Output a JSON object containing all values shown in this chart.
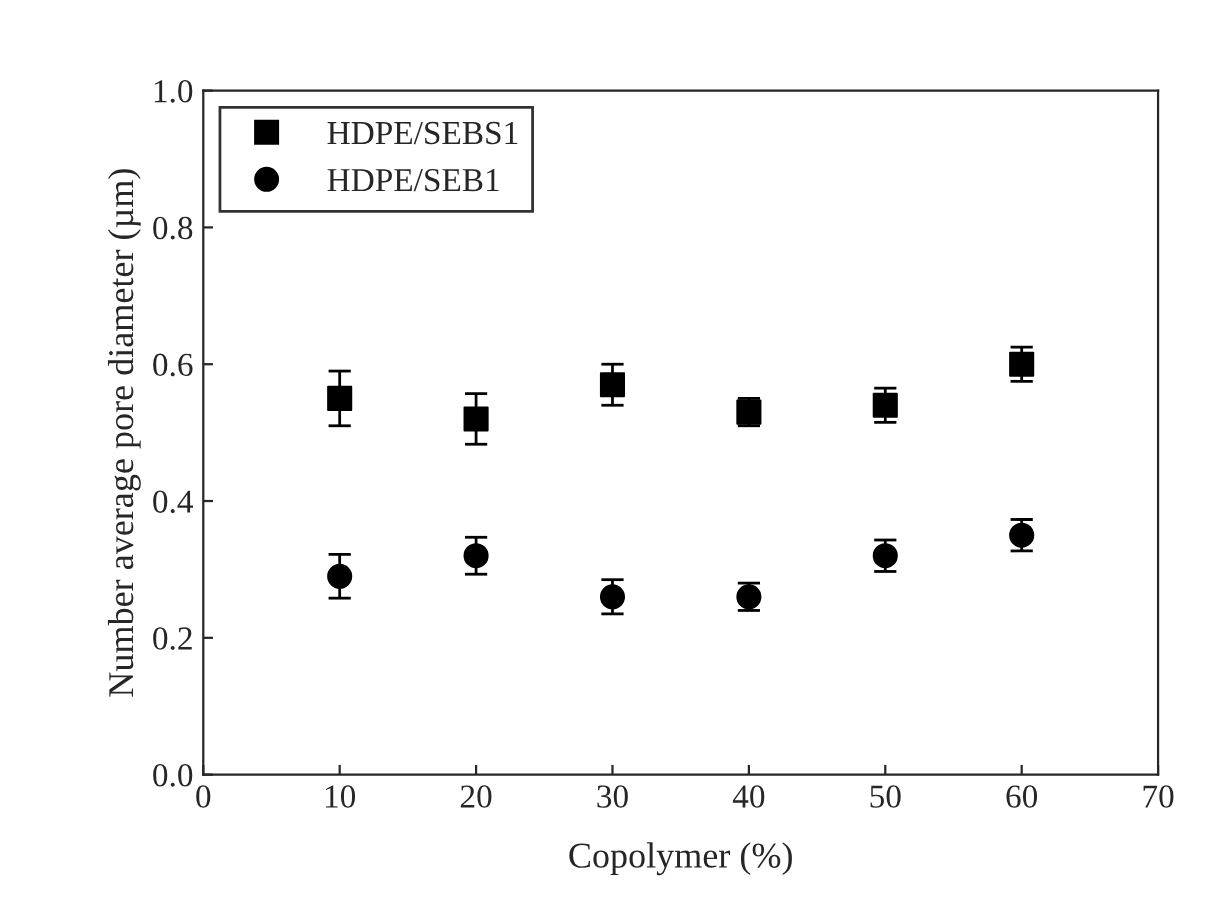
{
  "chart_data": {
    "type": "scatter",
    "xlabel": "Copolymer (%)",
    "ylabel": "Number average pore diameter (µm)",
    "xlim": [
      0,
      70
    ],
    "xticks": [
      0,
      10,
      20,
      30,
      40,
      50,
      60,
      70
    ],
    "ylim": [
      0,
      1.0
    ],
    "yticks": [
      {
        "value": 0,
        "label": "0.0"
      },
      0.2,
      0.4,
      0.6,
      0.8,
      {
        "value": 1.0,
        "label": "1.0"
      }
    ],
    "x": [
      10,
      20,
      30,
      40,
      50,
      60
    ],
    "legend": "top left",
    "grid": false,
    "series": [
      {
        "name": "HDPE/SEBS1",
        "color": "#000000",
        "marker": "square",
        "values": [
          0.55,
          0.52,
          0.57,
          0.53,
          0.54,
          0.6
        ],
        "errors": [
          0.04,
          0.037,
          0.03,
          0.02,
          0.025,
          0.025
        ]
      },
      {
        "name": "HDPE/SEB1",
        "color": "#000000",
        "marker": "circle",
        "values": [
          0.29,
          0.32,
          0.26,
          0.26,
          0.32,
          0.35
        ],
        "errors": [
          0.032,
          0.027,
          0.025,
          0.02,
          0.023,
          0.023
        ]
      }
    ]
  }
}
